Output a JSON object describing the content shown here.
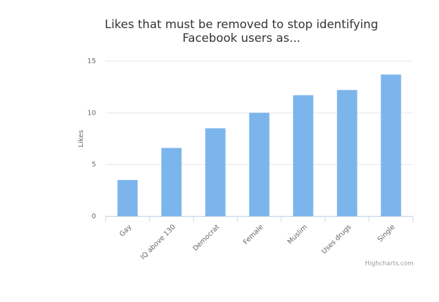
{
  "chart_data": {
    "type": "bar",
    "title": "Likes that must be removed to stop identifying Facebook users as...",
    "y_label": "Likes",
    "categories": [
      "Gay",
      "IQ above 130",
      "Democrat",
      "Female",
      "Muslim",
      "Uses drugs",
      "Single"
    ],
    "values": [
      3.5,
      6.6,
      8.5,
      10,
      11.7,
      12.2,
      13.7
    ],
    "color": "#7cb5ec",
    "ylim": [
      0,
      15
    ],
    "yticks": [
      0,
      5,
      10,
      15
    ],
    "grid": true,
    "credits": "Highcharts.com"
  }
}
